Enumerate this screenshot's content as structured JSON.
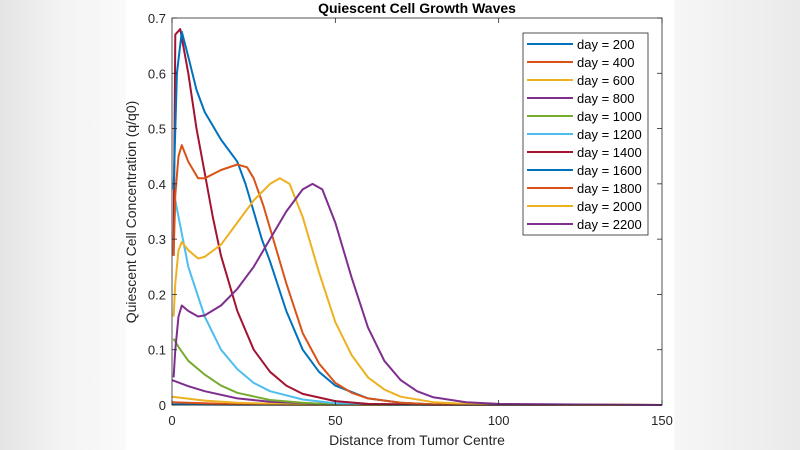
{
  "chart_data": {
    "type": "line",
    "title": "Quiescent Cell Growth Waves",
    "xlabel": "Distance from Tumor Centre",
    "ylabel": "Quiescent Cell Concentration (q/q0)",
    "xlim": [
      0,
      150
    ],
    "ylim": [
      0,
      0.7
    ],
    "xticks": [
      0,
      50,
      100,
      150
    ],
    "yticks": [
      0,
      0.1,
      0.2,
      0.3,
      0.4,
      0.5,
      0.6,
      0.7
    ],
    "grid": false,
    "legend_position": "top-right",
    "series": [
      {
        "name": "day = 200",
        "color": "#0072BD",
        "x": [
          0,
          20,
          150
        ],
        "y": [
          0.001,
          0.0005,
          0
        ]
      },
      {
        "name": "day = 400",
        "color": "#D95319",
        "x": [
          0,
          10,
          20,
          40,
          150
        ],
        "y": [
          0.005,
          0.003,
          0.001,
          0.0003,
          0
        ]
      },
      {
        "name": "day = 600",
        "color": "#EDB120",
        "x": [
          0,
          10,
          20,
          40,
          60,
          150
        ],
        "y": [
          0.015,
          0.008,
          0.004,
          0.001,
          0.0003,
          0
        ]
      },
      {
        "name": "day = 800",
        "color": "#7E2F8E",
        "x": [
          0,
          5,
          10,
          20,
          30,
          50,
          70,
          150
        ],
        "y": [
          0.045,
          0.034,
          0.025,
          0.012,
          0.006,
          0.001,
          0.0003,
          0
        ]
      },
      {
        "name": "day = 1000",
        "color": "#77AC30",
        "x": [
          0.5,
          2,
          5,
          10,
          15,
          20,
          30,
          40,
          50,
          70,
          150
        ],
        "y": [
          0.12,
          0.105,
          0.08,
          0.055,
          0.035,
          0.022,
          0.009,
          0.004,
          0.001,
          0.0003,
          0
        ]
      },
      {
        "name": "day = 1200",
        "color": "#4DBEEE",
        "x": [
          0.5,
          1,
          3,
          5,
          10,
          15,
          20,
          25,
          30,
          40,
          50,
          70,
          150
        ],
        "y": [
          0.3,
          0.37,
          0.31,
          0.25,
          0.16,
          0.1,
          0.065,
          0.04,
          0.025,
          0.01,
          0.003,
          0.0005,
          0
        ]
      },
      {
        "name": "day = 1400",
        "color": "#A2142F",
        "x": [
          0.5,
          1,
          2.5,
          5,
          7.5,
          10,
          12.5,
          15,
          20,
          25,
          30,
          35,
          40,
          50,
          60,
          80,
          150
        ],
        "y": [
          0.27,
          0.67,
          0.68,
          0.6,
          0.5,
          0.42,
          0.34,
          0.27,
          0.17,
          0.1,
          0.06,
          0.035,
          0.02,
          0.007,
          0.002,
          0.0005,
          0
        ]
      },
      {
        "name": "day = 1600",
        "color": "#0072BD",
        "x": [
          0.5,
          1.5,
          3,
          5,
          7.5,
          10,
          15,
          20,
          22.5,
          25,
          27.5,
          30,
          35,
          40,
          45,
          50,
          60,
          70,
          80,
          150
        ],
        "y": [
          0.39,
          0.6,
          0.675,
          0.63,
          0.57,
          0.53,
          0.48,
          0.44,
          0.4,
          0.35,
          0.3,
          0.26,
          0.17,
          0.1,
          0.06,
          0.035,
          0.012,
          0.004,
          0.001,
          0
        ]
      },
      {
        "name": "day = 1800",
        "color": "#D95319",
        "x": [
          0.5,
          1,
          2,
          3,
          5,
          8,
          10,
          15,
          20,
          23,
          25,
          28,
          30,
          35,
          40,
          45,
          50,
          55,
          60,
          70,
          80,
          150
        ],
        "y": [
          0.27,
          0.38,
          0.45,
          0.47,
          0.44,
          0.41,
          0.41,
          0.425,
          0.435,
          0.43,
          0.41,
          0.36,
          0.32,
          0.22,
          0.13,
          0.075,
          0.04,
          0.022,
          0.012,
          0.004,
          0.001,
          0
        ]
      },
      {
        "name": "day = 2000",
        "color": "#EDB120",
        "x": [
          0.5,
          1,
          2,
          3,
          5,
          8,
          10,
          15,
          20,
          25,
          30,
          33,
          36,
          40,
          45,
          50,
          55,
          60,
          65,
          70,
          80,
          90,
          100,
          150
        ],
        "y": [
          0.16,
          0.22,
          0.28,
          0.295,
          0.28,
          0.265,
          0.268,
          0.29,
          0.33,
          0.37,
          0.4,
          0.41,
          0.4,
          0.34,
          0.24,
          0.15,
          0.09,
          0.05,
          0.028,
          0.015,
          0.005,
          0.002,
          0.001,
          0
        ]
      },
      {
        "name": "day = 2200",
        "color": "#7E2F8E",
        "x": [
          0.5,
          1,
          2,
          3,
          5,
          8,
          10,
          15,
          20,
          25,
          30,
          35,
          40,
          43,
          46,
          50,
          55,
          60,
          65,
          70,
          75,
          80,
          90,
          100,
          120,
          150
        ],
        "y": [
          0.05,
          0.1,
          0.16,
          0.18,
          0.17,
          0.16,
          0.162,
          0.18,
          0.21,
          0.25,
          0.3,
          0.35,
          0.39,
          0.4,
          0.39,
          0.33,
          0.23,
          0.14,
          0.08,
          0.045,
          0.025,
          0.014,
          0.005,
          0.002,
          0.001,
          0
        ]
      }
    ]
  }
}
